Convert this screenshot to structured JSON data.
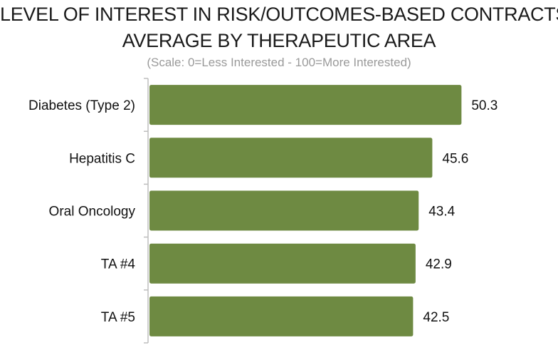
{
  "chart_data": {
    "type": "bar",
    "orientation": "horizontal",
    "title_lines": [
      "LEVEL OF INTEREST IN RISK/OUTCOMES-BASED CONTRACTS:",
      "AVERAGE BY THERAPEUTIC AREA"
    ],
    "subtitle": "(Scale: 0=Less Interested - 100=More Interested)",
    "categories": [
      "Diabetes (Type 2)",
      "Hepatitis C",
      "Oral Oncology",
      "TA #4",
      "TA #5"
    ],
    "values": [
      50.3,
      45.6,
      43.4,
      42.9,
      42.5
    ],
    "value_labels": [
      "50.3",
      "45.6",
      "43.4",
      "42.9",
      "42.5"
    ],
    "xlim": [
      0,
      60
    ],
    "bar_color": "#6e8a42",
    "axis_color": "#bdbdbd",
    "grid": false,
    "legend": "none"
  }
}
